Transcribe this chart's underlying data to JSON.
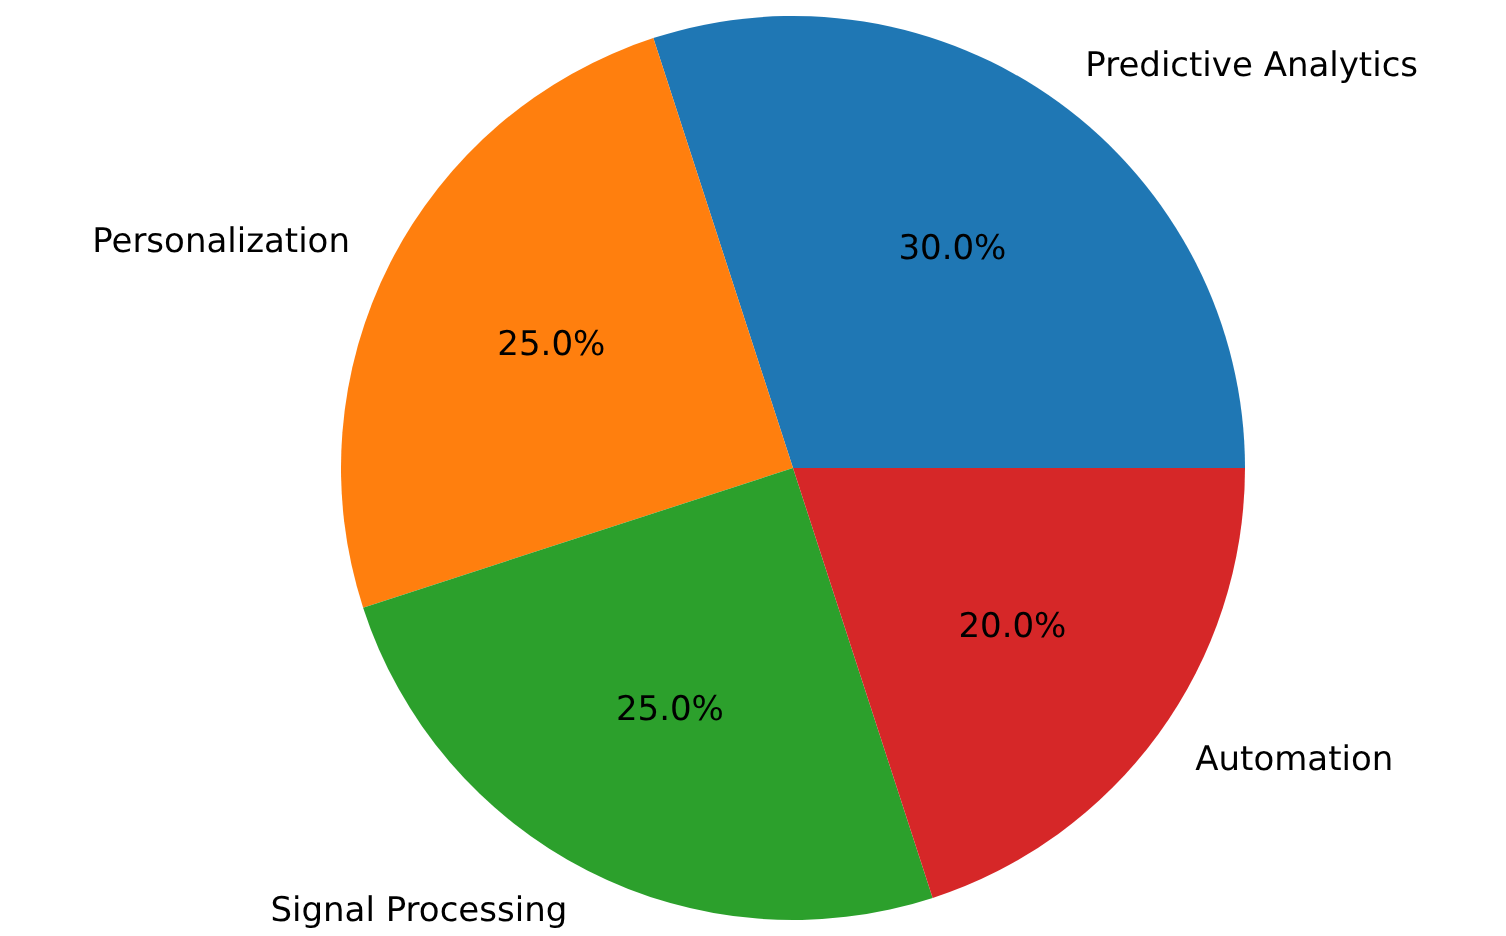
{
  "chart_data": {
    "type": "pie",
    "categories": [
      "Predictive Analytics",
      "Personalization",
      "Signal Processing",
      "Automation"
    ],
    "values": [
      30,
      25,
      25,
      20
    ],
    "colors": [
      "#1f77b4",
      "#ff7f0e",
      "#2ca02c",
      "#d62728"
    ],
    "value_labels": [
      "30.0%",
      "25.0%",
      "25.0%",
      "20.0%"
    ]
  }
}
